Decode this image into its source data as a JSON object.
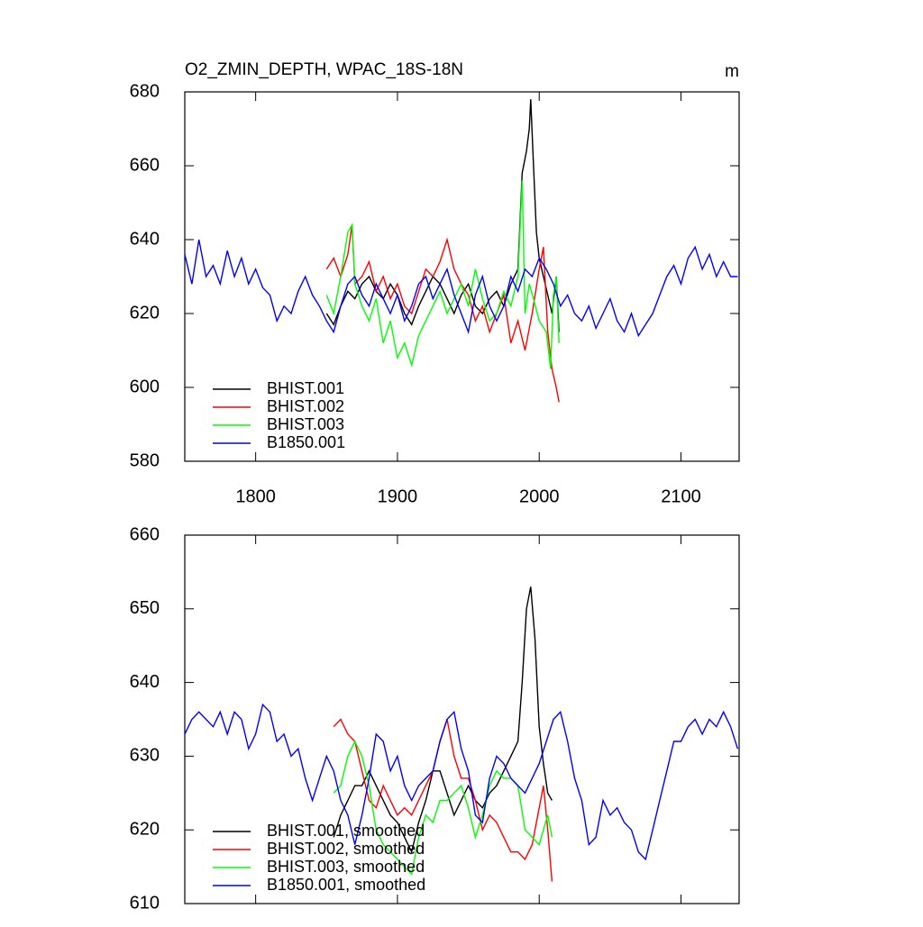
{
  "chart_data": [
    {
      "type": "line",
      "title": "O2_ZMIN_DEPTH, WPAC_18S-18N",
      "units_label": "m",
      "xlim": [
        1750,
        2141
      ],
      "xticks": [
        1800,
        1900,
        2000,
        2100
      ],
      "xtick_labels": true,
      "ylim": [
        580,
        680
      ],
      "yticks": [
        580,
        600,
        620,
        640,
        660,
        680
      ],
      "legend": "lower left",
      "series": [
        {
          "name": "BHIST.001",
          "color": "#000000",
          "x": [
            1850,
            1855,
            1860,
            1865,
            1870,
            1875,
            1880,
            1885,
            1890,
            1895,
            1900,
            1905,
            1910,
            1915,
            1920,
            1925,
            1930,
            1935,
            1940,
            1945,
            1950,
            1955,
            1960,
            1965,
            1970,
            1975,
            1980,
            1985,
            1988,
            1991,
            1993,
            1994,
            1996,
            1998,
            2000,
            2003,
            2006,
            2009,
            2012,
            2014
          ],
          "values": [
            620,
            617,
            622,
            626,
            624,
            628,
            630,
            626,
            624,
            628,
            625,
            620,
            617,
            622,
            626,
            630,
            628,
            624,
            620,
            625,
            628,
            622,
            620,
            624,
            626,
            622,
            628,
            632,
            658,
            664,
            670,
            678,
            660,
            642,
            635,
            630,
            625,
            620,
            630,
            615
          ]
        },
        {
          "name": "BHIST.002",
          "color": "#ff0000",
          "x": [
            1850,
            1855,
            1860,
            1865,
            1868,
            1870,
            1875,
            1880,
            1885,
            1890,
            1895,
            1900,
            1905,
            1910,
            1915,
            1920,
            1925,
            1930,
            1935,
            1940,
            1945,
            1950,
            1955,
            1960,
            1965,
            1970,
            1975,
            1980,
            1985,
            1990,
            1995,
            2000,
            2003,
            2006,
            2009,
            2012,
            2014
          ],
          "values": [
            632,
            635,
            630,
            636,
            644,
            628,
            630,
            634,
            626,
            630,
            624,
            628,
            622,
            620,
            626,
            632,
            630,
            634,
            640,
            632,
            628,
            625,
            618,
            622,
            615,
            620,
            625,
            612,
            618,
            610,
            620,
            632,
            638,
            615,
            605,
            600,
            596
          ]
        },
        {
          "name": "BHIST.003",
          "color": "#00ff00",
          "x": [
            1850,
            1855,
            1860,
            1865,
            1868,
            1870,
            1875,
            1880,
            1885,
            1890,
            1895,
            1900,
            1905,
            1910,
            1915,
            1920,
            1925,
            1930,
            1935,
            1940,
            1945,
            1950,
            1955,
            1960,
            1965,
            1970,
            1975,
            1980,
            1985,
            1988,
            1990,
            1993,
            1996,
            2000,
            2005,
            2008,
            2010,
            2012,
            2014
          ],
          "values": [
            625,
            620,
            630,
            642,
            644,
            628,
            622,
            618,
            624,
            612,
            618,
            608,
            612,
            606,
            614,
            618,
            622,
            626,
            620,
            624,
            628,
            622,
            632,
            624,
            618,
            620,
            626,
            622,
            630,
            656,
            620,
            628,
            624,
            618,
            615,
            605,
            625,
            630,
            612
          ]
        },
        {
          "name": "B1850.001",
          "color": "#0000ff",
          "x": [
            1750,
            1755,
            1760,
            1765,
            1770,
            1775,
            1780,
            1785,
            1790,
            1795,
            1800,
            1805,
            1810,
            1815,
            1820,
            1825,
            1830,
            1835,
            1840,
            1845,
            1850,
            1855,
            1860,
            1865,
            1870,
            1875,
            1880,
            1885,
            1890,
            1895,
            1900,
            1905,
            1910,
            1915,
            1920,
            1925,
            1930,
            1935,
            1940,
            1945,
            1950,
            1955,
            1960,
            1965,
            1970,
            1975,
            1980,
            1985,
            1990,
            1995,
            2000,
            2005,
            2010,
            2015,
            2020,
            2025,
            2030,
            2035,
            2040,
            2045,
            2050,
            2055,
            2060,
            2065,
            2070,
            2075,
            2080,
            2085,
            2090,
            2095,
            2100,
            2105,
            2110,
            2115,
            2120,
            2125,
            2130,
            2135,
            2140
          ],
          "values": [
            636,
            628,
            640,
            630,
            633,
            628,
            637,
            630,
            635,
            628,
            632,
            627,
            625,
            618,
            622,
            620,
            626,
            630,
            625,
            622,
            618,
            615,
            622,
            628,
            630,
            625,
            622,
            628,
            624,
            620,
            625,
            618,
            622,
            628,
            630,
            624,
            628,
            632,
            625,
            620,
            615,
            625,
            630,
            622,
            618,
            622,
            630,
            626,
            632,
            630,
            635,
            632,
            628,
            622,
            625,
            620,
            618,
            622,
            616,
            620,
            624,
            618,
            615,
            620,
            614,
            617,
            620,
            625,
            630,
            633,
            628,
            635,
            638,
            632,
            636,
            630,
            634,
            630,
            630
          ]
        }
      ]
    },
    {
      "type": "line",
      "xlim": [
        1750,
        2141
      ],
      "xticks": [
        1800,
        1900,
        2000,
        2100
      ],
      "xtick_labels": false,
      "ylim": [
        610,
        660
      ],
      "yticks": [
        610,
        620,
        630,
        640,
        650,
        660
      ],
      "legend": "lower left",
      "series": [
        {
          "name": "BHIST.001, smoothed",
          "color": "#000000",
          "x": [
            1855,
            1860,
            1865,
            1870,
            1875,
            1880,
            1885,
            1890,
            1895,
            1900,
            1905,
            1910,
            1915,
            1920,
            1925,
            1930,
            1935,
            1940,
            1945,
            1950,
            1955,
            1960,
            1965,
            1970,
            1975,
            1980,
            1985,
            1988,
            1991,
            1994,
            1997,
            2000,
            2003,
            2006,
            2009
          ],
          "values": [
            619,
            622,
            624,
            626,
            626,
            628,
            626,
            624,
            622,
            621,
            619,
            617,
            621,
            624,
            628,
            628,
            625,
            622,
            624,
            626,
            624,
            623,
            625,
            626,
            628,
            630,
            632,
            640,
            650,
            653,
            646,
            634,
            629,
            625,
            624
          ]
        },
        {
          "name": "BHIST.002, smoothed",
          "color": "#ff0000",
          "x": [
            1855,
            1860,
            1865,
            1870,
            1875,
            1880,
            1885,
            1890,
            1895,
            1900,
            1905,
            1910,
            1915,
            1920,
            1925,
            1930,
            1935,
            1940,
            1945,
            1950,
            1955,
            1960,
            1965,
            1970,
            1975,
            1980,
            1985,
            1990,
            1995,
            2000,
            2003,
            2006,
            2009
          ],
          "values": [
            634,
            635,
            633,
            632,
            628,
            624,
            623,
            626,
            624,
            622,
            623,
            622,
            624,
            626,
            628,
            632,
            635,
            630,
            627,
            627,
            624,
            620,
            622,
            621,
            619,
            617,
            617,
            616,
            618,
            623,
            626,
            620,
            613
          ]
        },
        {
          "name": "BHIST.003, smoothed",
          "color": "#00ff00",
          "x": [
            1855,
            1860,
            1865,
            1870,
            1875,
            1880,
            1885,
            1890,
            1895,
            1900,
            1905,
            1910,
            1915,
            1920,
            1925,
            1930,
            1935,
            1940,
            1945,
            1950,
            1955,
            1960,
            1965,
            1970,
            1975,
            1980,
            1985,
            1990,
            1995,
            2000,
            2003,
            2006,
            2009
          ],
          "values": [
            625,
            626,
            630,
            632,
            630,
            626,
            620,
            618,
            617,
            616,
            615,
            614,
            619,
            622,
            621,
            624,
            624,
            625,
            626,
            623,
            619,
            622,
            626,
            628,
            627,
            627,
            626,
            620,
            619,
            618,
            620,
            622,
            619
          ]
        },
        {
          "name": "B1850.001, smoothed",
          "color": "#0000ff",
          "x": [
            1750,
            1755,
            1760,
            1765,
            1770,
            1775,
            1780,
            1785,
            1790,
            1795,
            1800,
            1805,
            1810,
            1815,
            1820,
            1825,
            1830,
            1835,
            1840,
            1845,
            1850,
            1855,
            1860,
            1865,
            1870,
            1875,
            1880,
            1885,
            1890,
            1895,
            1900,
            1905,
            1910,
            1915,
            1920,
            1925,
            1930,
            1935,
            1940,
            1945,
            1950,
            1955,
            1960,
            1965,
            1970,
            1975,
            1980,
            1985,
            1990,
            1995,
            2000,
            2005,
            2010,
            2015,
            2020,
            2025,
            2030,
            2035,
            2040,
            2045,
            2050,
            2055,
            2060,
            2065,
            2070,
            2075,
            2080,
            2085,
            2090,
            2095,
            2100,
            2105,
            2110,
            2115,
            2120,
            2125,
            2130,
            2135,
            2140
          ],
          "values": [
            633,
            635,
            636,
            635,
            634,
            636,
            633,
            636,
            635,
            631,
            633,
            637,
            636,
            632,
            633,
            630,
            631,
            627,
            624,
            627,
            630,
            628,
            624,
            622,
            618,
            622,
            627,
            633,
            632,
            628,
            630,
            626,
            624,
            626,
            627,
            628,
            632,
            635,
            636,
            631,
            628,
            622,
            621,
            627,
            630,
            629,
            627,
            626,
            625,
            627,
            629,
            632,
            635,
            636,
            632,
            627,
            624,
            618,
            619,
            624,
            622,
            623,
            621,
            620,
            617,
            616,
            620,
            624,
            628,
            632,
            632,
            634,
            635,
            633,
            635,
            634,
            636,
            634,
            631
          ]
        }
      ]
    }
  ]
}
